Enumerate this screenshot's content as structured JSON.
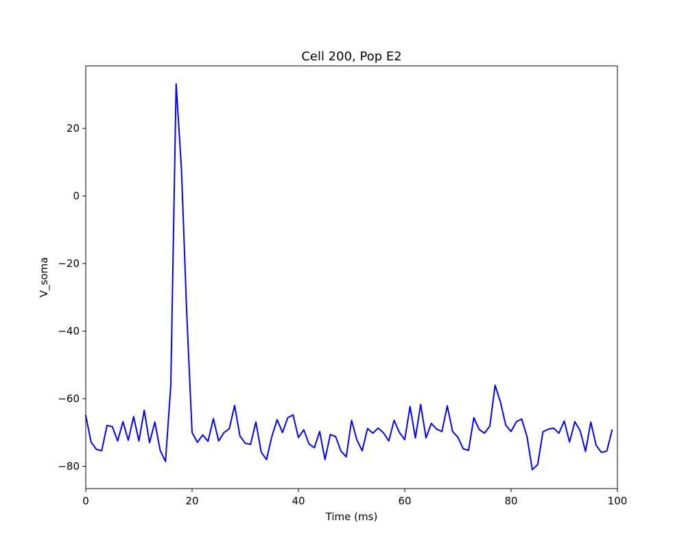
{
  "chart_data": {
    "type": "line",
    "title": "Cell 200, Pop E2",
    "xlabel": "Time (ms)",
    "ylabel": "V_soma",
    "xlim": [
      0,
      100
    ],
    "ylim": [
      -86.6,
      38.5
    ],
    "xticks": [
      0,
      20,
      40,
      60,
      80,
      100
    ],
    "xtick_labels": [
      "0",
      "20",
      "40",
      "60",
      "80",
      "100"
    ],
    "yticks": [
      20,
      0,
      -20,
      -40,
      -60,
      -80
    ],
    "ytick_labels": [
      "20",
      "0",
      "−20",
      "−40",
      "−60",
      "−80"
    ],
    "grid": false,
    "series": [
      {
        "color": "#0000ff",
        "x": [
          0,
          1,
          2,
          3,
          4,
          5,
          6,
          7,
          8,
          9,
          10,
          11,
          12,
          13,
          14,
          15,
          16,
          17,
          18,
          19,
          20,
          21,
          22,
          23,
          24,
          25,
          26,
          27,
          28,
          29,
          30,
          31,
          32,
          33,
          34,
          35,
          36,
          37,
          38,
          39,
          40,
          41,
          42,
          43,
          44,
          45,
          46,
          47,
          48,
          49,
          50,
          51,
          52,
          53,
          54,
          55,
          56,
          57,
          58,
          59,
          60,
          61,
          62,
          63,
          64,
          65,
          66,
          67,
          68,
          69,
          70,
          71,
          72,
          73,
          74,
          75,
          76,
          77,
          78,
          79,
          80,
          81,
          82,
          83,
          84,
          85,
          86,
          87,
          88,
          89,
          90,
          91,
          92,
          93,
          94,
          95,
          96,
          97,
          98,
          99
        ],
        "y": [
          -65,
          -72.8,
          -75,
          -75.4,
          -67.9,
          -68.3,
          -72.5,
          -66.8,
          -72.3,
          -65.3,
          -72.5,
          -63.4,
          -73,
          -66.9,
          -75.3,
          -78.6,
          -56,
          33.2,
          8,
          -35,
          -70,
          -72.9,
          -70.7,
          -72.6,
          -65.9,
          -72.5,
          -70,
          -68.9,
          -62,
          -71,
          -73.2,
          -73.5,
          -66.9,
          -75.8,
          -78,
          -71.2,
          -66.2,
          -70,
          -65.6,
          -64.8,
          -71.5,
          -69.2,
          -73.4,
          -74.5,
          -69.7,
          -78,
          -70.6,
          -71.2,
          -75.5,
          -77.2,
          -66.4,
          -72.2,
          -75.4,
          -68.8,
          -70.2,
          -68.7,
          -70.1,
          -72.5,
          -66.4,
          -70,
          -72.1,
          -62.3,
          -71.6,
          -61.7,
          -71.6,
          -67.3,
          -69,
          -69.7,
          -62.1,
          -69.7,
          -71.4,
          -74.8,
          -75.3,
          -65.6,
          -69.1,
          -70.2,
          -68.1,
          -56,
          -61,
          -67.8,
          -69.7,
          -66.8,
          -66,
          -71.2,
          -81,
          -79.5,
          -69.8,
          -69,
          -68.7,
          -70.2,
          -66.6,
          -72.8,
          -66.8,
          -69.5,
          -75.6,
          -66.9,
          -73.8,
          -75.9,
          -75.5,
          -69.3
        ]
      }
    ]
  }
}
